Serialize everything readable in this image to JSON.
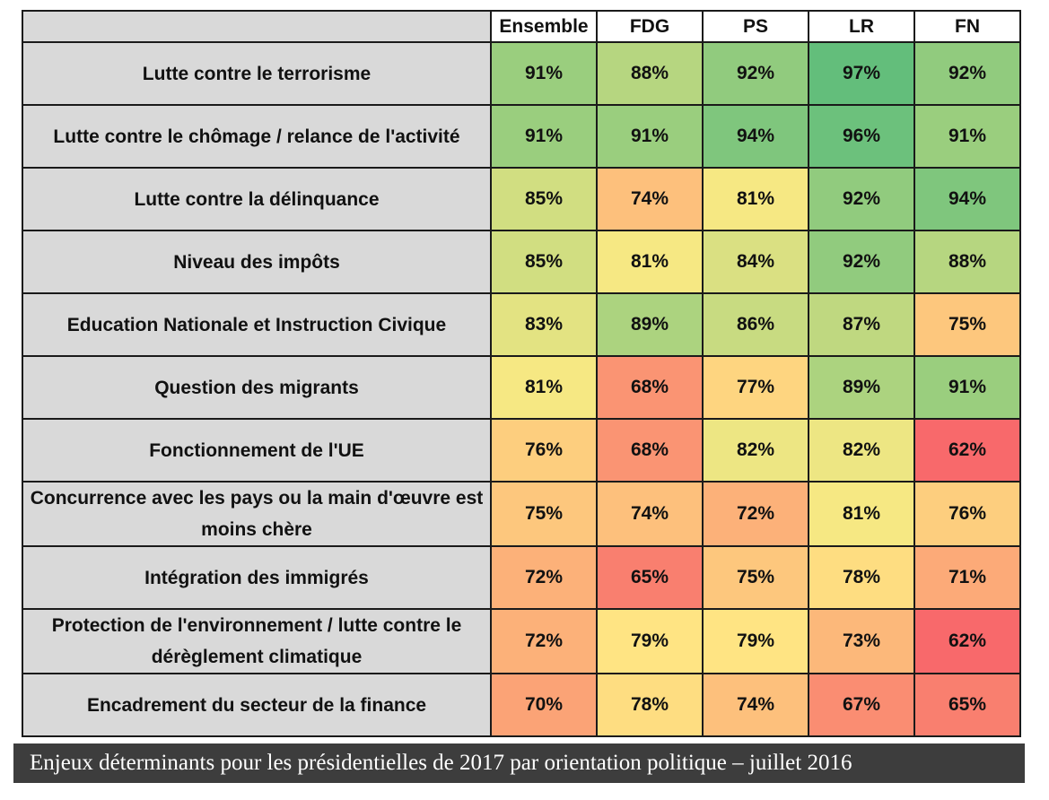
{
  "chart_data": {
    "type": "heatmap",
    "title": "",
    "columns": [
      "Ensemble",
      "FDG",
      "PS",
      "LR",
      "FN"
    ],
    "rows": [
      "Lutte contre le terrorisme",
      "Lutte contre le chômage / relance de l'activité",
      "Lutte contre la délinquance",
      "Niveau des impôts",
      "Education Nationale et Instruction Civique",
      "Question des migrants",
      "Fonctionnement de l'UE",
      "Concurrence avec les pays ou la main d'œuvre est moins chère",
      "Intégration des immigrés",
      "Protection de l'environnement / lutte contre le dérèglement climatique",
      "Encadrement du secteur de la finance"
    ],
    "values": [
      [
        91,
        88,
        92,
        97,
        92
      ],
      [
        91,
        91,
        94,
        96,
        91
      ],
      [
        85,
        74,
        81,
        92,
        94
      ],
      [
        85,
        81,
        84,
        92,
        88
      ],
      [
        83,
        89,
        86,
        87,
        75
      ],
      [
        81,
        68,
        77,
        89,
        91
      ],
      [
        76,
        68,
        82,
        82,
        62
      ],
      [
        75,
        74,
        72,
        81,
        76
      ],
      [
        72,
        65,
        75,
        78,
        71
      ],
      [
        72,
        79,
        79,
        73,
        62
      ],
      [
        70,
        78,
        74,
        67,
        65
      ]
    ],
    "unit": "%",
    "color_scale": {
      "low": "#f8696b",
      "mid": "#ffeb84",
      "high": "#63be7b",
      "min": 62,
      "mid_value": 80,
      "max": 97
    }
  },
  "caption": "Enjeux déterminants pour les présidentielles de 2017 par orientation politique – juillet 2016"
}
